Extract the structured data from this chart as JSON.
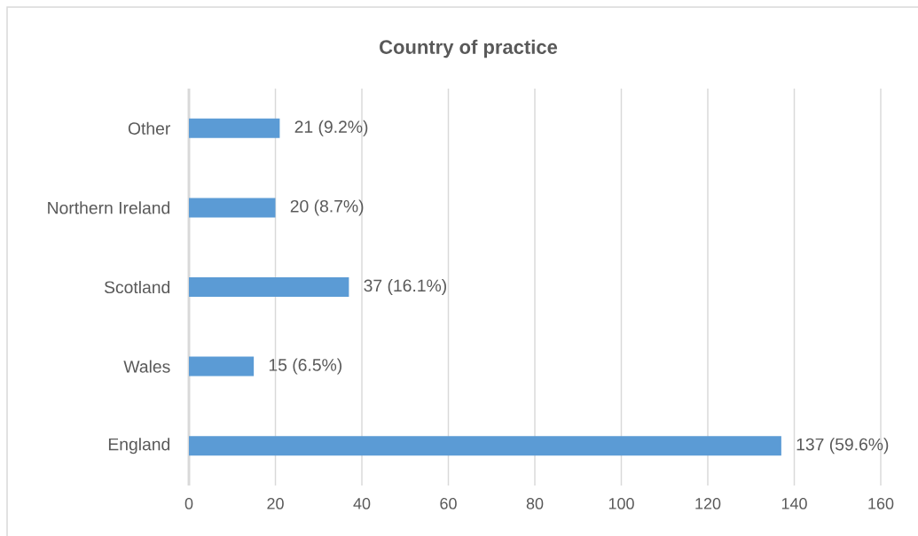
{
  "chart_data": {
    "type": "bar",
    "orientation": "horizontal",
    "title": "Country of practice",
    "categories": [
      "Other",
      "Northern Ireland",
      "Scotland",
      "Wales",
      "England"
    ],
    "values": [
      21,
      20,
      37,
      15,
      137
    ],
    "value_labels": [
      "21 (9.2%)",
      "20 (8.7%)",
      "37 (16.1%)",
      "15 (6.5%)",
      "137 (59.6%)"
    ],
    "color": "#5b9bd5",
    "xlim": [
      0,
      160
    ],
    "xticks": [
      0,
      20,
      40,
      60,
      80,
      100,
      120,
      140,
      160
    ],
    "grid": "x"
  }
}
